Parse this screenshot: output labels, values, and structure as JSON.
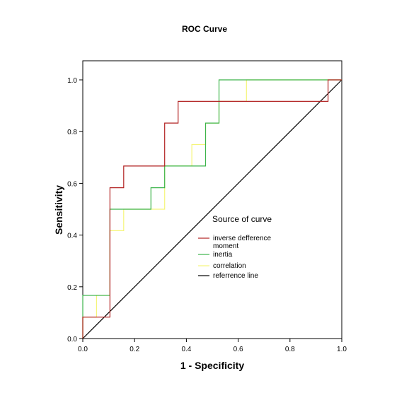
{
  "chart_data": {
    "type": "line",
    "title": "ROC Curve",
    "xlabel": "1 - Specificity",
    "ylabel": "Sensitivity",
    "xlim": [
      0,
      1
    ],
    "ylim": [
      0,
      1
    ],
    "xticks": [
      "0.0",
      "0.2",
      "0.4",
      "0.6",
      "0.8",
      "1.0"
    ],
    "yticks": [
      "0.0",
      "0.2",
      "0.4",
      "0.6",
      "0.8",
      "1.0"
    ],
    "grid": false,
    "legend": {
      "title": "Source of curve",
      "placement": "right-center"
    },
    "series": [
      {
        "name": "inverse defference moment",
        "color": "#b22222",
        "step": true,
        "x": [
          0,
          0,
          0.105,
          0.105,
          0.158,
          0.158,
          0.316,
          0.316,
          0.368,
          0.368,
          0.947,
          0.947,
          1.0
        ],
        "y": [
          0,
          0.083,
          0.083,
          0.583,
          0.583,
          0.667,
          0.667,
          0.833,
          0.833,
          0.917,
          0.917,
          1.0,
          1.0
        ]
      },
      {
        "name": "inertia",
        "color": "#3cb44b",
        "step": true,
        "x": [
          0,
          0,
          0.053,
          0.053,
          0.105,
          0.105,
          0.158,
          0.158,
          0.263,
          0.263,
          0.316,
          0.316,
          0.421,
          0.421,
          0.474,
          0.474,
          0.526,
          0.526,
          1.0
        ],
        "y": [
          0,
          0.167,
          0.167,
          0.167,
          0.167,
          0.5,
          0.5,
          0.5,
          0.5,
          0.583,
          0.583,
          0.667,
          0.667,
          0.667,
          0.667,
          0.833,
          0.833,
          1.0,
          1.0
        ]
      },
      {
        "name": "correlation",
        "color": "#f5f57a",
        "step": true,
        "x": [
          0,
          0,
          0.053,
          0.053,
          0.105,
          0.105,
          0.158,
          0.158,
          0.316,
          0.316,
          0.421,
          0.421,
          0.474,
          0.474,
          0.526,
          0.526,
          0.632,
          0.632,
          1.0
        ],
        "y": [
          0,
          0.083,
          0.083,
          0.167,
          0.167,
          0.417,
          0.417,
          0.5,
          0.5,
          0.667,
          0.667,
          0.75,
          0.75,
          0.833,
          0.833,
          0.917,
          0.917,
          1.0,
          1.0
        ]
      },
      {
        "name": "referrence line",
        "color": "#000000",
        "step": false,
        "x": [
          0,
          1
        ],
        "y": [
          0,
          1
        ]
      }
    ]
  }
}
